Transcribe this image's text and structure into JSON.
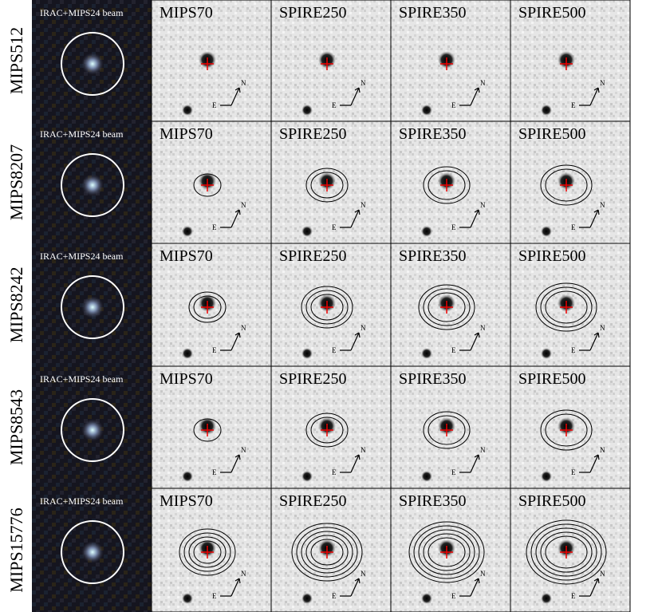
{
  "rows": [
    {
      "label": "MIPS512",
      "panels": [
        "IRAC+MIPS24 beam",
        "MIPS70",
        "SPIRE250",
        "SPIRE350",
        "SPIRE500"
      ]
    },
    {
      "label": "MIPS8207",
      "panels": [
        "IRAC+MIPS24 beam",
        "MIPS70",
        "SPIRE250",
        "SPIRE350",
        "SPIRE500"
      ]
    },
    {
      "label": "MIPS8242",
      "panels": [
        "IRAC+MIPS24 beam",
        "MIPS70",
        "SPIRE250",
        "SPIRE350",
        "SPIRE500"
      ]
    },
    {
      "label": "MIPS8543",
      "panels": [
        "IRAC+MIPS24 beam",
        "MIPS70",
        "SPIRE250",
        "SPIRE350",
        "SPIRE500"
      ]
    },
    {
      "label": "MIPS15776",
      "panels": [
        "IRAC+MIPS24 beam",
        "MIPS70",
        "SPIRE250",
        "SPIRE350",
        "SPIRE500"
      ]
    }
  ],
  "compass": {
    "north": "N",
    "east": "E"
  }
}
